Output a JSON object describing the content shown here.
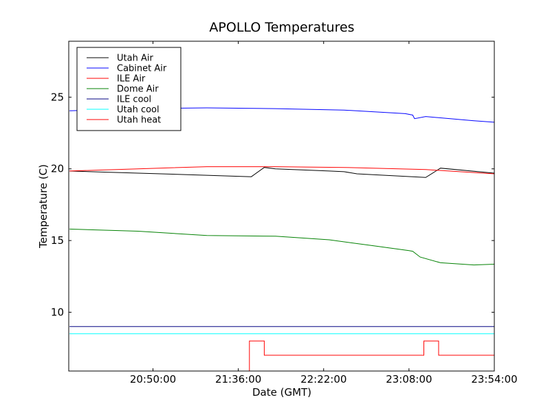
{
  "chart_data": {
    "type": "line",
    "title": "APOLLO Temperatures",
    "xlabel": "Date (GMT)",
    "ylabel": "Temperature (C)",
    "xlim": [
      "20:04:36",
      "23:54:00"
    ],
    "ylim": [
      5.9,
      28.9
    ],
    "xticks": [
      "20:50:00",
      "21:36:00",
      "22:22:00",
      "23:08:00",
      "23:54:00"
    ],
    "yticks": [
      10,
      15,
      20,
      25
    ],
    "grid": false,
    "legend_position": "top-left",
    "series": [
      {
        "name": "Utah Air",
        "color": "#000000",
        "step": false,
        "x": [
          "20:05",
          "20:42",
          "21:19",
          "21:43",
          "21:50",
          "21:56",
          "22:25",
          "22:33",
          "22:40",
          "23:17",
          "23:25",
          "23:54"
        ],
        "y": [
          19.85,
          19.7,
          19.55,
          19.45,
          20.1,
          20.0,
          19.85,
          19.8,
          19.65,
          19.4,
          20.05,
          19.7
        ]
      },
      {
        "name": "Cabinet Air",
        "color": "#0000ff",
        "step": false,
        "x": [
          "20:05",
          "20:42",
          "21:19",
          "21:56",
          "22:33",
          "23:06",
          "23:10",
          "23:11",
          "23:17",
          "23:43",
          "23:54"
        ],
        "y": [
          24.05,
          24.2,
          24.25,
          24.2,
          24.1,
          23.85,
          23.75,
          23.5,
          23.65,
          23.35,
          23.25
        ]
      },
      {
        "name": "ILE Air",
        "color": "#ff0000",
        "step": false,
        "x": [
          "20:05",
          "20:42",
          "21:19",
          "21:56",
          "22:33",
          "23:17",
          "23:54"
        ],
        "y": [
          19.85,
          20.0,
          20.15,
          20.15,
          20.1,
          19.95,
          19.65
        ]
      },
      {
        "name": "Dome Air",
        "color": "#008000",
        "step": false,
        "x": [
          "20:05",
          "20:42",
          "21:19",
          "21:56",
          "22:25",
          "22:48",
          "23:08",
          "23:10",
          "23:14",
          "23:25",
          "23:43",
          "23:54"
        ],
        "y": [
          15.8,
          15.65,
          15.35,
          15.3,
          15.05,
          14.65,
          14.3,
          14.25,
          13.85,
          13.45,
          13.3,
          13.35
        ]
      },
      {
        "name": "ILE cool",
        "color": "#000080",
        "step": false,
        "x": [
          "20:05",
          "23:54"
        ],
        "y": [
          9.0,
          9.0
        ]
      },
      {
        "name": "Utah cool",
        "color": "#00ffff",
        "step": false,
        "x": [
          "20:05",
          "23:54"
        ],
        "y": [
          8.5,
          8.5
        ]
      },
      {
        "name": "Utah heat",
        "color": "#ff0000",
        "step": true,
        "x": [
          "20:05",
          "21:42",
          "21:50",
          "23:16",
          "23:24",
          "23:54"
        ],
        "y": [
          5.9,
          8.0,
          7.0,
          8.0,
          7.0,
          7.0
        ]
      }
    ]
  }
}
